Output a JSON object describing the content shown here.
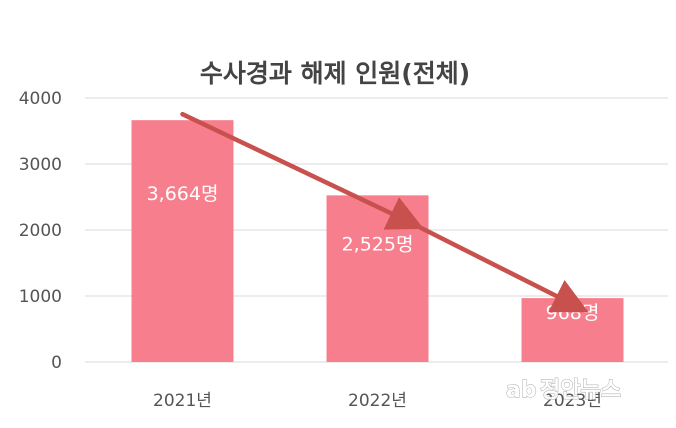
{
  "chart_data": {
    "type": "bar",
    "title": "수사경과 해제 인원(전체)",
    "categories": [
      "2021년",
      "2022년",
      "2023년"
    ],
    "values": [
      3664,
      2525,
      968
    ],
    "data_labels": [
      "3,664명",
      "2,525명",
      "968명"
    ],
    "ylim": [
      0,
      4000
    ],
    "yticks": [
      0,
      1000,
      2000,
      3000,
      4000
    ],
    "grid": true,
    "bar_color": "#f77f8d",
    "trend_arrow": {
      "type": "line",
      "from_category": "2021년",
      "to_category": "2023년",
      "color": "#c8514e"
    }
  },
  "watermark": {
    "text": "정안뉴스",
    "logo": "ab"
  }
}
